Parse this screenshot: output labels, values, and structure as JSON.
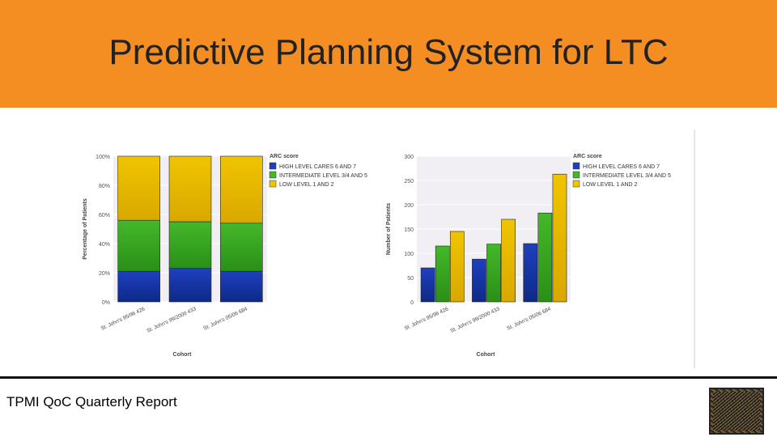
{
  "slide": {
    "title": "Predictive Planning System for LTC",
    "footer": "TPMI QoC Quarterly Report"
  },
  "colors": {
    "banner": "#f58e22",
    "high": "#1f3fbf",
    "intermediate": "#44b82a",
    "low": "#f0c400"
  },
  "chart_data": [
    {
      "type": "bar",
      "stacked": true,
      "xlabel": "Cohort",
      "ylabel": "Percentage of Patients",
      "ylim": [
        0,
        100
      ],
      "yticks": [
        "0%",
        "20%",
        "40%",
        "60%",
        "80%",
        "100%"
      ],
      "categories": [
        "St. John's 95/96 426",
        "St. John's 99/2000 433",
        "St. John's 05/06 684"
      ],
      "legend_title": "ARC score",
      "series": [
        {
          "name": "HIGH LEVEL CARES 6 AND 7",
          "values": [
            21,
            23,
            21
          ]
        },
        {
          "name": "INTERMEDIATE LEVEL 3/4 AND 5",
          "values": [
            35,
            32,
            33
          ]
        },
        {
          "name": "LOW LEVEL 1 AND 2",
          "values": [
            44,
            45,
            46
          ]
        }
      ],
      "legend_placement": "right",
      "grid": true
    },
    {
      "type": "bar",
      "stacked": false,
      "xlabel": "Cohort",
      "ylabel": "Number of Patients",
      "ylim": [
        0,
        300
      ],
      "yticks": [
        "0",
        "50",
        "100",
        "150",
        "200",
        "250",
        "300"
      ],
      "categories": [
        "St. John's 95/96 426",
        "St. John's 99/2000 433",
        "St. John's 05/06 684"
      ],
      "legend_title": "ARC score",
      "series": [
        {
          "name": "HIGH LEVEL CARES 6 AND 7",
          "values": [
            70,
            88,
            120
          ]
        },
        {
          "name": "INTERMEDIATE LEVEL 3/4 AND 5",
          "values": [
            115,
            119,
            183
          ]
        },
        {
          "name": "LOW LEVEL 1 AND 2",
          "values": [
            145,
            170,
            263
          ]
        }
      ],
      "legend_placement": "right",
      "grid": true
    }
  ]
}
